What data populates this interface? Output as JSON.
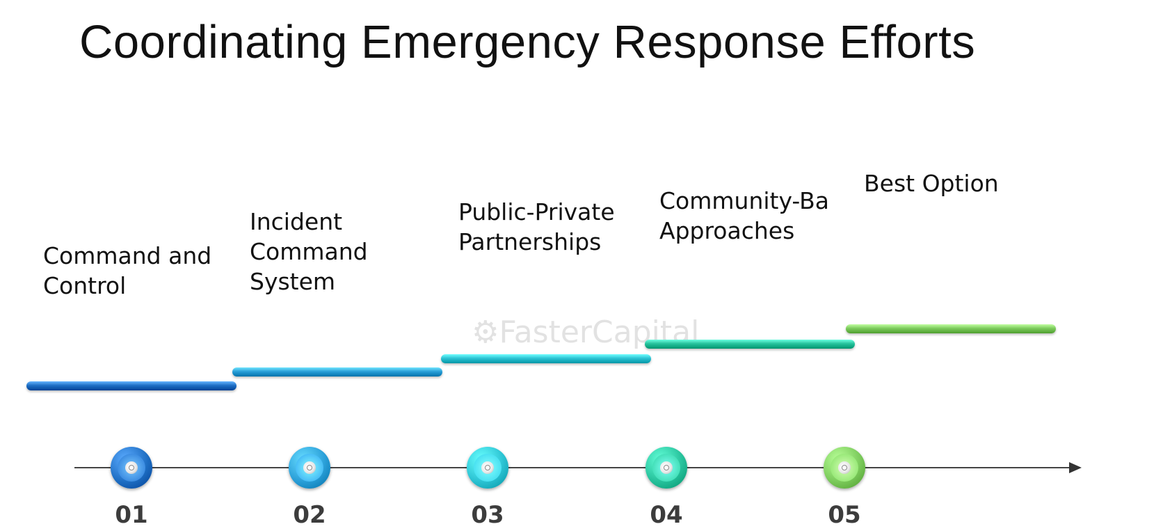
{
  "title": "Coordinating Emergency Response Efforts",
  "watermark": "FasterCapital",
  "steps": [
    {
      "number": "01",
      "label": "Command and\nControl",
      "color": "#1f6fc4"
    },
    {
      "number": "02",
      "label": "Incident\nCommand\nSystem",
      "color": "#2a9fd8"
    },
    {
      "number": "03",
      "label": "Public-Private\nPartnerships",
      "color": "#2cc3d3"
    },
    {
      "number": "04",
      "label": "Community-Ba\nApproaches",
      "color": "#27c29c"
    },
    {
      "number": "05",
      "label": "Best Option",
      "color": "#7ccb5c"
    }
  ]
}
